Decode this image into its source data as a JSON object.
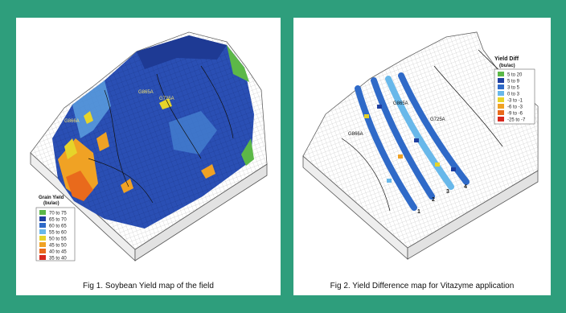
{
  "chart_data": [
    {
      "type": "heatmap",
      "caption": "Fig 1. Soybean Yield map of the field",
      "field_labels": [
        "G865A",
        "G725A",
        "G866A"
      ],
      "legend": {
        "title_line1": "Grain Yield",
        "title_line2": "(bu/ac)",
        "classes": [
          {
            "label": "70 to 75",
            "color": "#5cb848"
          },
          {
            "label": "65 to 70",
            "color": "#1f3fa0"
          },
          {
            "label": "60 to 65",
            "color": "#2f6ac8"
          },
          {
            "label": "55 to 60",
            "color": "#68b8ea"
          },
          {
            "label": "50 to 55",
            "color": "#e6d42a"
          },
          {
            "label": "45 to 50",
            "color": "#f0a224"
          },
          {
            "label": "40 to 45",
            "color": "#e96a1c"
          },
          {
            "label": "35 to 40",
            "color": "#d8281e"
          }
        ]
      }
    },
    {
      "type": "heatmap",
      "caption": "Fig 2. Yield Difference map for Vitazyme application",
      "field_labels": [
        "G865A",
        "G725A",
        "G866A"
      ],
      "strip_labels": [
        "1",
        "2",
        "3",
        "4"
      ],
      "legend": {
        "title_line1": "Yield Diff",
        "title_line2": "(bu/ac)",
        "classes": [
          {
            "label": "5 to 20",
            "color": "#5cb848"
          },
          {
            "label": "5 to 9",
            "color": "#1f3fa0"
          },
          {
            "label": "3 to 5",
            "color": "#2f6ac8"
          },
          {
            "label": "0 to 3",
            "color": "#68b8ea"
          },
          {
            "label": "-3 to -1",
            "color": "#e6d42a"
          },
          {
            "label": "-6 to -3",
            "color": "#f0a224"
          },
          {
            "label": "-9 to -6",
            "color": "#e96a1c"
          },
          {
            "label": "-25 to -7",
            "color": "#d8281e"
          }
        ]
      }
    }
  ]
}
